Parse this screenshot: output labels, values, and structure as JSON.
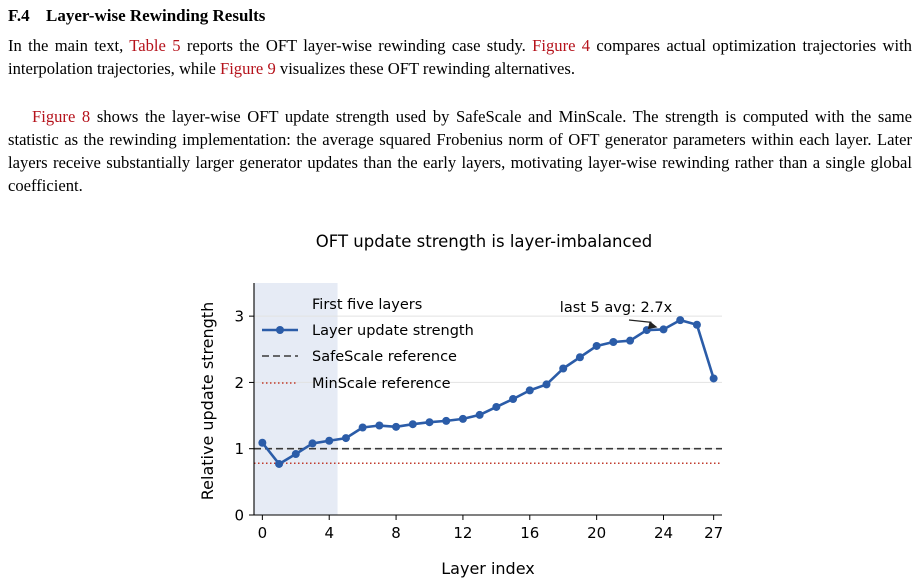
{
  "section": {
    "number": "F.4",
    "title": "Layer-wise Rewinding Results"
  },
  "paragraph1": {
    "t1": "In the main text, ",
    "ref1": "Table 5",
    "t2": " reports the OFT layer-wise rewinding case study. ",
    "ref2": "Figure 4",
    "t3": " compares actual optimization trajectories with interpolation trajectories, while ",
    "ref3": "Figure 9",
    "t4": " visualizes these OFT rewinding alternatives."
  },
  "paragraph2": {
    "ref1": "Figure 8",
    "t1": " shows the layer-wise OFT update strength used by SafeScale and MinScale. The strength is computed with the same statistic as the rewinding implementation: the average squared Frobenius norm of OFT generator parameters within each layer. Later layers receive substantially larger generator updates than the early layers, motivating layer-wise rewinding rather than a single global coefficient."
  },
  "colors": {
    "reference_link": "#b5121b",
    "series_line": "#2b5ca8",
    "safescale_line": "#3a3a3a",
    "minscale_line": "#c0392b",
    "shade": "#e6ebf5"
  },
  "chart_data": {
    "type": "line",
    "title": "OFT update strength is layer-imbalanced",
    "xlabel": "Layer index",
    "ylabel": "Relative update strength",
    "xlim": [
      -0.5,
      27.5
    ],
    "ylim": [
      0,
      3.5
    ],
    "xticks": [
      0,
      4,
      8,
      12,
      16,
      20,
      24,
      27
    ],
    "yticks": [
      0,
      1,
      2,
      3
    ],
    "grid": "horizontal",
    "legend_position": "top-left",
    "shaded_region": {
      "label": "First five layers",
      "x_range": [
        -0.5,
        4.5
      ]
    },
    "x": [
      0,
      1,
      2,
      3,
      4,
      5,
      6,
      7,
      8,
      9,
      10,
      11,
      12,
      13,
      14,
      15,
      16,
      17,
      18,
      19,
      20,
      21,
      22,
      23,
      24,
      25,
      26,
      27
    ],
    "series": [
      {
        "name": "Layer update strength",
        "values": [
          1.09,
          0.77,
          0.92,
          1.08,
          1.12,
          1.16,
          1.32,
          1.35,
          1.33,
          1.37,
          1.4,
          1.42,
          1.45,
          1.51,
          1.63,
          1.75,
          1.88,
          1.97,
          2.21,
          2.38,
          2.55,
          2.61,
          2.63,
          2.79,
          2.8,
          2.94,
          2.87,
          2.06
        ]
      }
    ],
    "reference_lines": [
      {
        "name": "SafeScale reference",
        "y": 1.0,
        "style": "dashed"
      },
      {
        "name": "MinScale reference",
        "y": 0.78,
        "style": "dotted"
      }
    ],
    "annotation": {
      "text": "last 5 avg: 2.7x",
      "points_to_x": 24
    }
  }
}
